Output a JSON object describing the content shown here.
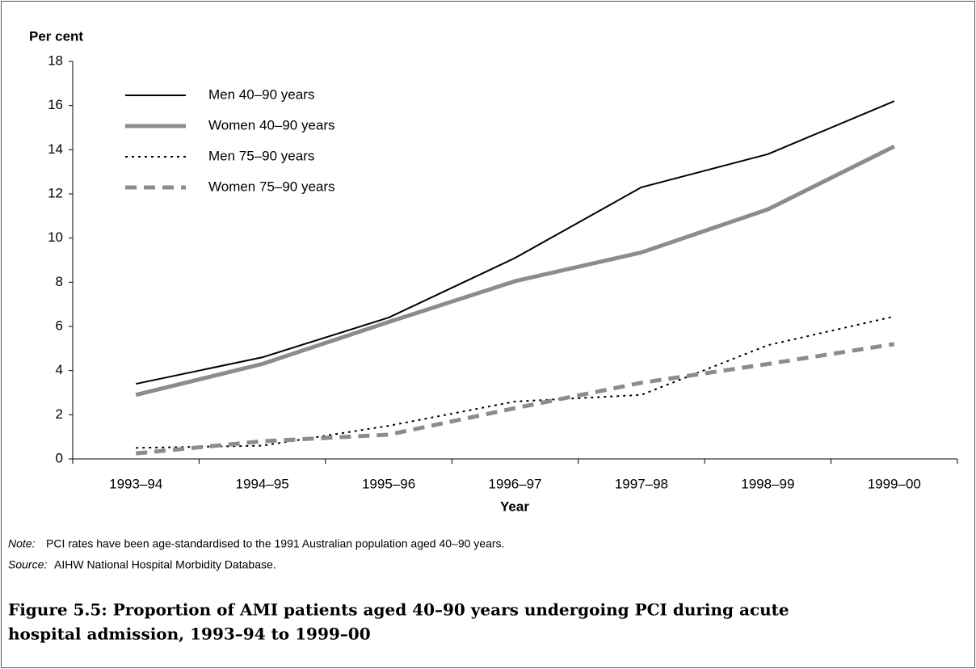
{
  "chart_data": {
    "type": "line",
    "y_label": "Per cent",
    "x_label": "Year",
    "categories": [
      "1993–94",
      "1994–95",
      "1995–96",
      "1996–97",
      "1997–98",
      "1998–99",
      "1999–00"
    ],
    "series": [
      {
        "name": "Men 40–90 years",
        "color": "#000000",
        "style": "solid",
        "weight": "thin",
        "values": [
          3.4,
          4.6,
          6.4,
          9.1,
          12.3,
          13.8,
          16.2
        ]
      },
      {
        "name": "Women 40–90 years",
        "color": "#8c8c8c",
        "style": "solid",
        "weight": "thick",
        "values": [
          2.9,
          4.3,
          6.2,
          8.05,
          9.35,
          11.3,
          14.15
        ]
      },
      {
        "name": "Men 75–90 years",
        "color": "#000000",
        "style": "dotted",
        "weight": "thin",
        "values": [
          0.5,
          0.6,
          1.5,
          2.6,
          2.9,
          5.15,
          6.45
        ]
      },
      {
        "name": "Women 75–90 years",
        "color": "#8c8c8c",
        "style": "dashed",
        "weight": "thick",
        "values": [
          0.25,
          0.8,
          1.1,
          2.3,
          3.45,
          4.3,
          5.2
        ]
      }
    ],
    "ylim": [
      0,
      18
    ],
    "yticks": [
      0,
      2,
      4,
      6,
      8,
      10,
      12,
      14,
      16,
      18
    ],
    "legend": "top-left",
    "note": {
      "label": "Note:",
      "text": "PCI rates have been age-standardised to the 1991 Australian population aged 40–90 years."
    },
    "source": {
      "label": "Source:",
      "text": "AIHW National Hospital Morbidity Database."
    },
    "caption": [
      "Figure 5.5: Proportion of AMI patients aged 40–90 years undergoing PCI during acute",
      "hospital admission, 1993–94 to 1999–00"
    ]
  }
}
